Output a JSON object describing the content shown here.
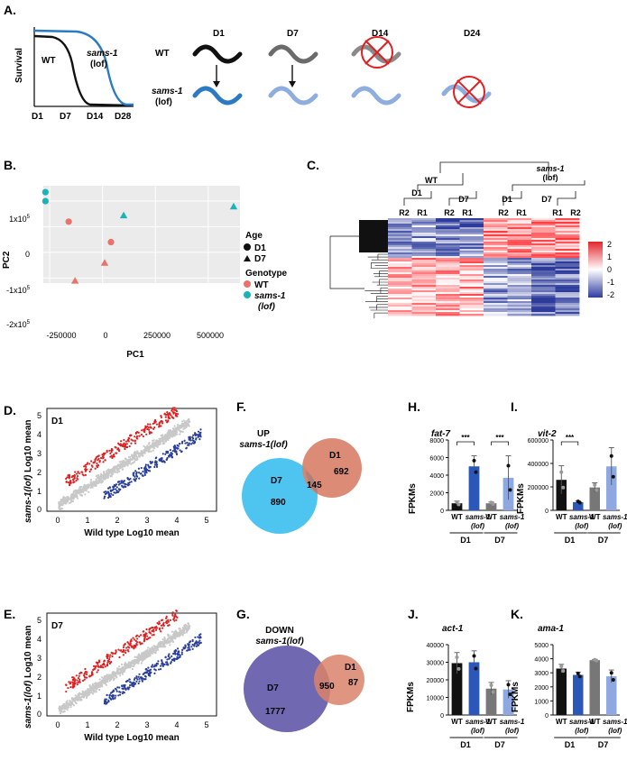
{
  "panels": {
    "a": {
      "label": "A.",
      "survival_ylabel": "Survival",
      "wt_curve": "WT",
      "sams_curve": "sams-1",
      "lof": "(lof)",
      "xticks": [
        "D1",
        "D7",
        "D14",
        "D28"
      ],
      "days": [
        "D1",
        "D7",
        "D14",
        "D24"
      ],
      "row_wt": "WT",
      "row_sams": "sams-1",
      "row_lof": "(lof)"
    },
    "b": {
      "label": "B.",
      "xlabel": "PC1",
      "ylabel": "PC2",
      "xticks": [
        "-250000",
        "0",
        "250000",
        "500000"
      ],
      "yticks": [
        {
          "b": "1x10",
          "e": "5"
        },
        {
          "b": "0",
          "e": ""
        },
        {
          "b": "-1x10",
          "e": "5"
        },
        {
          "b": "-2x10",
          "e": "5"
        }
      ],
      "legend_age": "Age",
      "legend_d1": "D1",
      "legend_d7": "D7",
      "legend_genotype": "Genotype",
      "legend_wt": "WT",
      "legend_sams": "sams-1",
      "legend_lof": "(lof)",
      "colors": {
        "wt": "#e8736b",
        "sams": "#1cb3b8"
      }
    },
    "c": {
      "label": "C.",
      "wt_label": "WT",
      "sams_label": "sams-1",
      "lof": "(lof)",
      "group_d1": "D1",
      "group_d7": "D7",
      "group_d1b": "D1",
      "group_d7b": "D7",
      "cols": [
        "R2",
        "R1",
        "R2",
        "R1",
        "R2",
        "R1",
        "R1",
        "R2"
      ],
      "scale": [
        "2",
        "1",
        "0",
        "-1",
        "-2"
      ]
    },
    "d": {
      "label": "D.",
      "day": "D1",
      "xlabel": "Wild type Log10 mean",
      "ylabel_i": "sams-1(lof)",
      "ylabel_r": " Log10 mean",
      "xticks": [
        "0",
        "1",
        "2",
        "3",
        "4",
        "5"
      ],
      "yticks": [
        "5",
        "4",
        "3",
        "2",
        "1",
        "0"
      ]
    },
    "e": {
      "label": "E.",
      "day": "D7",
      "xlabel": "Wild type Log10 mean",
      "ylabel_i": "sams-1(lof)",
      "ylabel_r": " Log10 mean",
      "xticks": [
        "0",
        "1",
        "2",
        "3",
        "4",
        "5"
      ],
      "yticks": [
        "5",
        "4",
        "3",
        "2",
        "1",
        "0"
      ]
    },
    "f": {
      "label": "F.",
      "title": "UP",
      "subtitle": "sams-1(lof)",
      "set_a": "D7",
      "set_b": "D1",
      "only_a": "890",
      "only_b": "692",
      "overlap": "145"
    },
    "g": {
      "label": "G.",
      "title": "DOWN",
      "subtitle": "sams-1(lof)",
      "set_a": "D7",
      "set_b": "D1",
      "only_a": "1777",
      "only_b": "87",
      "overlap": "950"
    },
    "h": {
      "label": "H.",
      "gene": "fat-7",
      "ylabel": "FPKMs",
      "yticks": [
        "8000",
        "6000",
        "4000",
        "2000",
        "0"
      ],
      "sig": [
        "***",
        "***"
      ]
    },
    "i": {
      "label": "I.",
      "gene": "vit-2",
      "ylabel": "FPKMs",
      "yticks": [
        "600000",
        "400000",
        "200000",
        "0"
      ],
      "sig": [
        "***"
      ]
    },
    "j": {
      "label": "J.",
      "gene": "act-1",
      "ylabel": "FPKMs",
      "yticks": [
        "40000",
        "30000",
        "20000",
        "10000",
        "0"
      ],
      "sig": []
    },
    "k": {
      "label": "K.",
      "gene": "ama-1",
      "ylabel": "FPKMs",
      "yticks": [
        "5000",
        "4000",
        "3000",
        "2000",
        "1000",
        "0"
      ],
      "sig": []
    },
    "bar_xlabels": {
      "wt": "WT",
      "sams": "sams-1",
      "lof": "(lof)",
      "d1": "D1",
      "d7": "D7"
    }
  },
  "chart_data": [
    {
      "type": "line",
      "panel": "A",
      "title": "",
      "ylabel": "Survival",
      "xlabel": "",
      "categories": [
        "D1",
        "D7",
        "D14",
        "D28"
      ],
      "series": [
        {
          "name": "WT",
          "color": "#111111"
        },
        {
          "name": "sams-1 (lof)",
          "color": "#2b7bc4"
        }
      ]
    },
    {
      "type": "scatter",
      "panel": "B",
      "xlabel": "PC1",
      "ylabel": "PC2",
      "xlim": [
        -280000,
        650000
      ],
      "ylim": [
        -220000,
        160000
      ],
      "series": [
        {
          "name": "WT D1",
          "shape": "circle",
          "color": "#e8736b",
          "points": [
            [
              -160000,
              20000
            ],
            [
              40000,
              -60000
            ]
          ]
        },
        {
          "name": "WT D7",
          "shape": "triangle",
          "color": "#e8736b",
          "points": [
            [
              10000,
              -140000
            ],
            [
              -130000,
              -210000
            ]
          ]
        },
        {
          "name": "sams-1 (lof) D1",
          "shape": "circle",
          "color": "#1cb3b8",
          "points": [
            [
              -270000,
              135000
            ],
            [
              -270000,
              100000
            ]
          ]
        },
        {
          "name": "sams-1 (lof) D7",
          "shape": "triangle",
          "color": "#1cb3b8",
          "points": [
            [
              100000,
              45000
            ],
            [
              620000,
              80000
            ]
          ]
        }
      ]
    },
    {
      "type": "heatmap",
      "panel": "C",
      "columns": [
        "WT D1 R2",
        "WT D1 R1",
        "WT D7 R2",
        "WT D7 R1",
        "sams-1 D1 R2",
        "sams-1 D1 R1",
        "sams-1 D7 R1",
        "sams-1 D7 R2"
      ],
      "scale_range": [
        -2,
        2
      ]
    },
    {
      "type": "scatter",
      "panel": "D",
      "title": "D1",
      "xlabel": "Wild type Log10 mean",
      "ylabel": "sams-1(lof) Log10 mean",
      "xlim": [
        -0.3,
        5.4
      ],
      "ylim": [
        -0.2,
        5.2
      ],
      "series": [
        {
          "name": "not significant",
          "color": "#c8c8c8"
        },
        {
          "name": "up",
          "color": "#e02020"
        },
        {
          "name": "down",
          "color": "#2a3f9a"
        }
      ]
    },
    {
      "type": "scatter",
      "panel": "E",
      "title": "D7",
      "xlabel": "Wild type Log10 mean",
      "ylabel": "sams-1(lof) Log10 mean",
      "xlim": [
        -0.3,
        5.4
      ],
      "ylim": [
        -0.2,
        5.2
      ],
      "series": [
        {
          "name": "not significant",
          "color": "#c8c8c8"
        },
        {
          "name": "up",
          "color": "#e02020"
        },
        {
          "name": "down",
          "color": "#2a3f9a"
        }
      ]
    },
    {
      "type": "bar",
      "panel": "H",
      "title": "fat-7",
      "ylabel": "FPKMs",
      "ylim": [
        0,
        8000
      ],
      "categories": [
        "WT D1",
        "sams-1(lof) D1",
        "WT D7",
        "sams-1(lof) D7"
      ],
      "values": [
        800,
        5000,
        800,
        3700
      ],
      "errors": [
        250,
        1200,
        150,
        2500
      ]
    },
    {
      "type": "bar",
      "panel": "I",
      "title": "vit-2",
      "ylabel": "FPKMs",
      "ylim": [
        0,
        600000
      ],
      "categories": [
        "WT D1",
        "sams-1(lof) D1",
        "WT D7",
        "sams-1(lof) D7"
      ],
      "values": [
        260000,
        70000,
        195000,
        375000
      ],
      "errors": [
        120000,
        10000,
        40000,
        160000
      ]
    },
    {
      "type": "bar",
      "panel": "J",
      "title": "act-1",
      "ylabel": "FPKMs",
      "ylim": [
        0,
        40000
      ],
      "categories": [
        "WT D1",
        "sams-1(lof) D1",
        "WT D7",
        "sams-1(lof) D7"
      ],
      "values": [
        29500,
        30000,
        15000,
        14500
      ],
      "errors": [
        6000,
        6500,
        3500,
        5000
      ]
    },
    {
      "type": "bar",
      "panel": "K",
      "title": "ama-1",
      "ylabel": "FPKMs",
      "ylim": [
        0,
        5000
      ],
      "categories": [
        "WT D1",
        "sams-1(lof) D1",
        "WT D7",
        "sams-1(lof) D7"
      ],
      "values": [
        3300,
        2850,
        3900,
        2750
      ],
      "errors": [
        300,
        200,
        50,
        450
      ]
    }
  ]
}
